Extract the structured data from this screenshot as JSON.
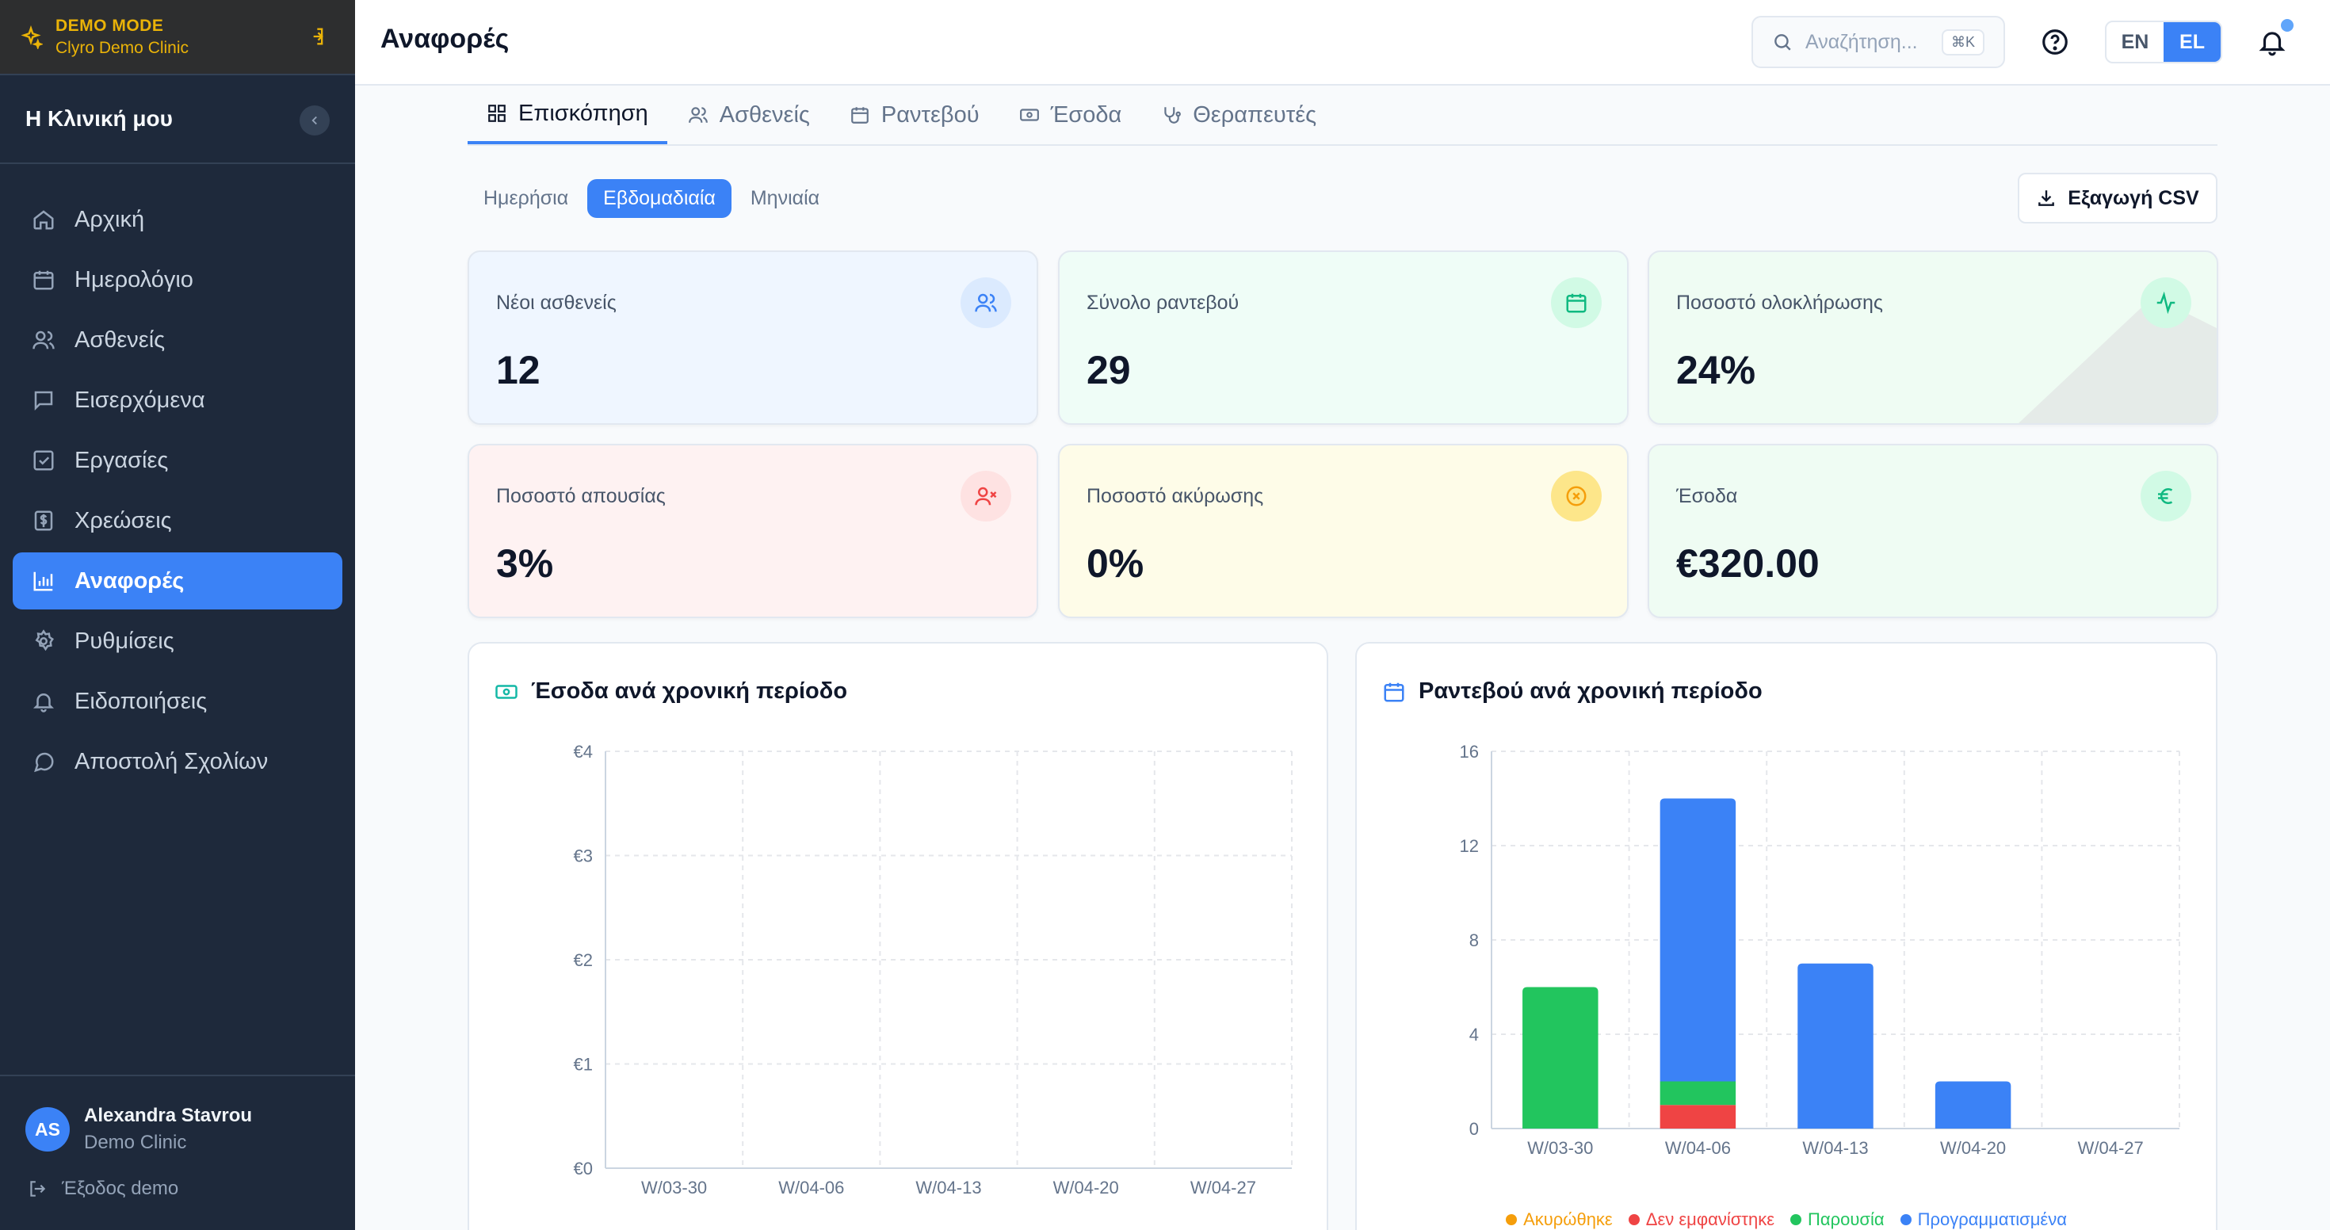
{
  "demo": {
    "mode": "DEMO MODE",
    "clinic": "Clyro Demo Clinic"
  },
  "sidebar": {
    "clinic_name": "Η Κλινική μου",
    "items": [
      {
        "label": "Αρχική",
        "icon": "home-icon"
      },
      {
        "label": "Ημερολόγιο",
        "icon": "calendar-icon"
      },
      {
        "label": "Ασθενείς",
        "icon": "users-icon"
      },
      {
        "label": "Εισερχόμενα",
        "icon": "message-icon"
      },
      {
        "label": "Εργασίες",
        "icon": "checkbox-icon"
      },
      {
        "label": "Χρεώσεις",
        "icon": "receipt-icon"
      },
      {
        "label": "Αναφορές",
        "icon": "bar-chart-icon",
        "active": true
      },
      {
        "label": "Ρυθμίσεις",
        "icon": "gear-icon"
      },
      {
        "label": "Ειδοποιήσεις",
        "icon": "bell-icon"
      },
      {
        "label": "Αποστολή Σχολίων",
        "icon": "chat-bubble-icon"
      }
    ],
    "user": {
      "initials": "AS",
      "name": "Alexandra Stavrou",
      "org": "Demo Clinic"
    },
    "logout": "Έξοδος demo"
  },
  "header": {
    "title": "Αναφορές",
    "search_placeholder": "Αναζήτηση...",
    "search_shortcut": "⌘K",
    "lang_en": "EN",
    "lang_el": "EL",
    "active_lang": "EL"
  },
  "tabs": [
    {
      "label": "Επισκόπηση",
      "active": true
    },
    {
      "label": "Ασθενείς"
    },
    {
      "label": "Ραντεβού"
    },
    {
      "label": "Έσοδα"
    },
    {
      "label": "Θεραπευτές"
    }
  ],
  "period": {
    "options": [
      "Ημερήσια",
      "Εβδομαδιαία",
      "Μηνιαία"
    ],
    "active": "Εβδομαδιαία"
  },
  "export_label": "Εξαγωγή CSV",
  "stats": [
    {
      "label": "Νέοι ασθενείς",
      "value": "12",
      "icon": "users-icon",
      "bg": "#eff6ff",
      "icon_bg": "#dbeafe",
      "icon_color": "#3b82f6"
    },
    {
      "label": "Σύνολο ραντεβού",
      "value": "29",
      "icon": "calendar-icon",
      "bg": "#effdf7",
      "icon_bg": "#d1fae5",
      "icon_color": "#10b981"
    },
    {
      "label": "Ποσοστό ολοκλήρωσης",
      "value": "24%",
      "icon": "activity-icon",
      "bg": "#effcf3",
      "icon_bg": "#d1fae5",
      "icon_color": "#10b981"
    },
    {
      "label": "Ποσοστό απουσίας",
      "value": "3%",
      "icon": "user-x-icon",
      "bg": "#fef2f2",
      "icon_bg": "#fee2e2",
      "icon_color": "#ef4444"
    },
    {
      "label": "Ποσοστό ακύρωσης",
      "value": "0%",
      "icon": "x-circle-icon",
      "bg": "#fefce8",
      "icon_bg": "#fde68a",
      "icon_color": "#f59e0b"
    },
    {
      "label": "Έσοδα",
      "value": "€320.00",
      "icon": "euro-icon",
      "bg": "#effcf3",
      "icon_bg": "#d1fae5",
      "icon_color": "#10b981"
    }
  ],
  "charts": {
    "revenue_title": "Έσοδα ανά χρονική περίοδο",
    "appointments_title": "Ραντεβού ανά χρονική περίοδο"
  },
  "chart_data": [
    {
      "type": "line",
      "title": "Έσοδα ανά χρονική περίοδο",
      "categories": [
        "W/03-30",
        "W/04-06",
        "W/04-13",
        "W/04-20",
        "W/04-27"
      ],
      "y_ticks": [
        "€0",
        "€1",
        "€2",
        "€3",
        "€4"
      ],
      "ylim": [
        0,
        4
      ],
      "series": [],
      "grid": true
    },
    {
      "type": "bar",
      "stacked": true,
      "title": "Ραντεβού ανά χρονική περίοδο",
      "categories": [
        "W/03-30",
        "W/04-06",
        "W/04-13",
        "W/04-20",
        "W/04-27"
      ],
      "y_ticks": [
        "0",
        "4",
        "8",
        "12",
        "16"
      ],
      "ylim": [
        0,
        16
      ],
      "grid": true,
      "legend_position": "bottom",
      "series": [
        {
          "name": "Ακυρώθηκε",
          "color": "#f59e0b",
          "values": [
            0,
            0,
            0,
            0,
            0
          ]
        },
        {
          "name": "Δεν εμφανίστηκε",
          "color": "#ef4444",
          "values": [
            0,
            1,
            0,
            0,
            0
          ]
        },
        {
          "name": "Παρουσία",
          "color": "#22c55e",
          "values": [
            6,
            1,
            0,
            0,
            0
          ]
        },
        {
          "name": "Προγραμματισμένα",
          "color": "#3b82f6",
          "values": [
            0,
            12,
            7,
            2,
            0
          ]
        }
      ]
    }
  ]
}
